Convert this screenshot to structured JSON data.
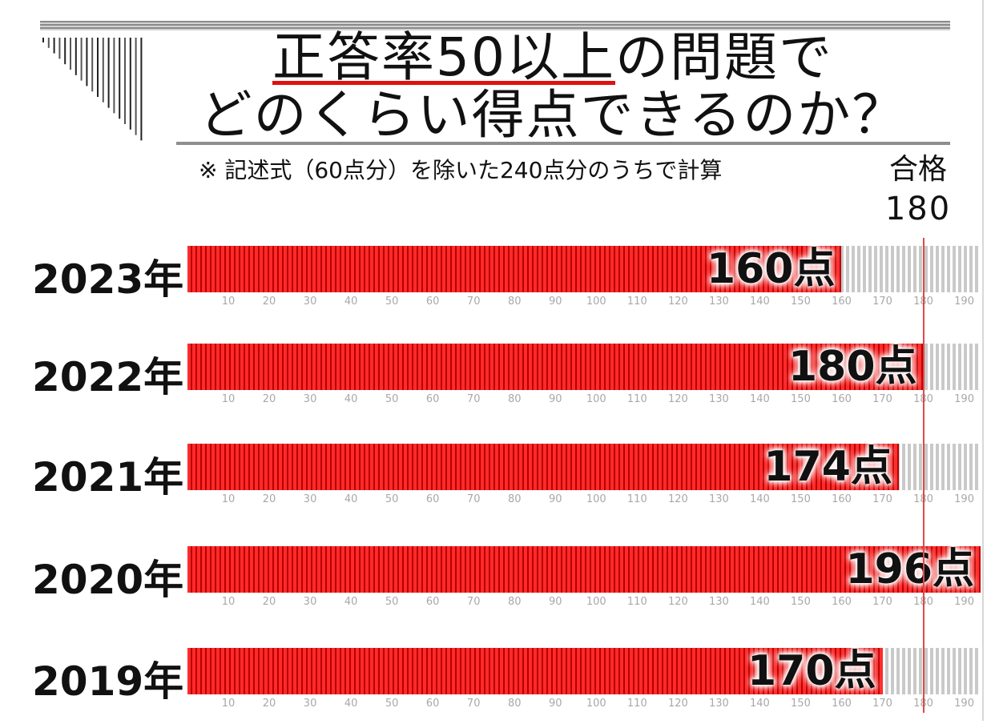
{
  "title": {
    "line1_emph": "正答率50以上",
    "line1_rest": "の問題で",
    "line2": "どのくらい得点できるのか？"
  },
  "note": "※ 記述式（60点分）を除いた240点分のうちで計算",
  "pass": {
    "label": "合格",
    "value": "180"
  },
  "chart_data": {
    "type": "bar",
    "orientation": "horizontal",
    "categories": [
      "2023年",
      "2022年",
      "2021年",
      "2020年",
      "2019年"
    ],
    "values": [
      160,
      180,
      174,
      196,
      170
    ],
    "data_labels": [
      "160点",
      "180点",
      "174点",
      "196点",
      "170点"
    ],
    "xlim": [
      0,
      194
    ],
    "x_ticks": [
      "10",
      "20",
      "30",
      "40",
      "50",
      "60",
      "70",
      "80",
      "90",
      "100",
      "110",
      "120",
      "130",
      "140",
      "150",
      "160",
      "170",
      "180",
      "190"
    ],
    "reference_line": {
      "value": 180,
      "label": "合格 180",
      "color": "#e04848"
    },
    "bar_color": "#ff2a2a",
    "grid": false,
    "legend": "none"
  }
}
